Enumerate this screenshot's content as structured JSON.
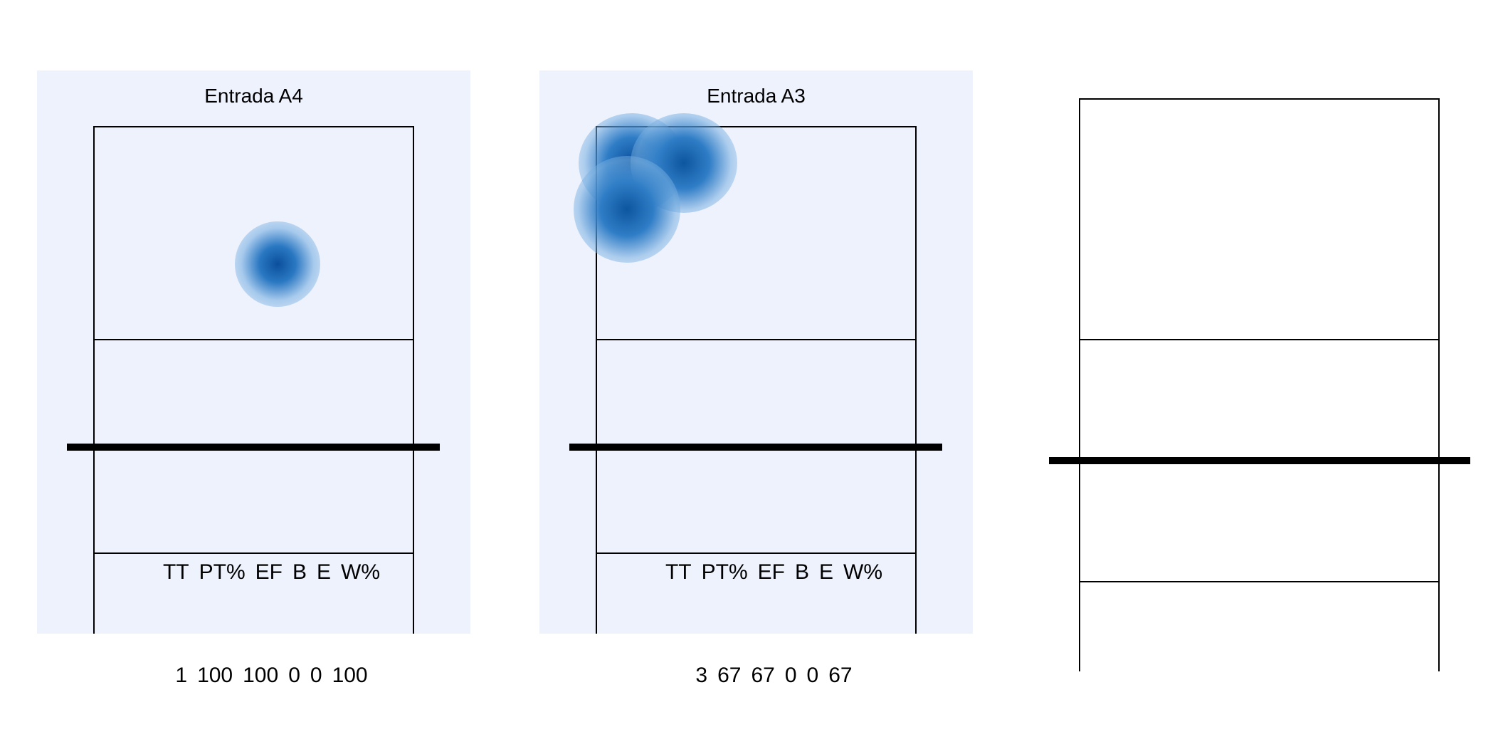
{
  "panels": [
    {
      "title": "Entrada A4",
      "headers": [
        "TT",
        "PT%",
        "EF",
        "B",
        "E",
        "W%"
      ],
      "values": [
        "1",
        "100",
        "100",
        "0",
        "0",
        "100"
      ]
    },
    {
      "title": "Entrada A3",
      "headers": [
        "TT",
        "PT%",
        "EF",
        "B",
        "E",
        "W%"
      ],
      "values": [
        "3",
        "67",
        "67",
        "0",
        "0",
        "67"
      ]
    }
  ],
  "colors": {
    "panel_background": "#edf2fd",
    "heat_dark": "#0b4f9c",
    "heat_light": "#6fa8dc",
    "court_lines": "#000000"
  }
}
